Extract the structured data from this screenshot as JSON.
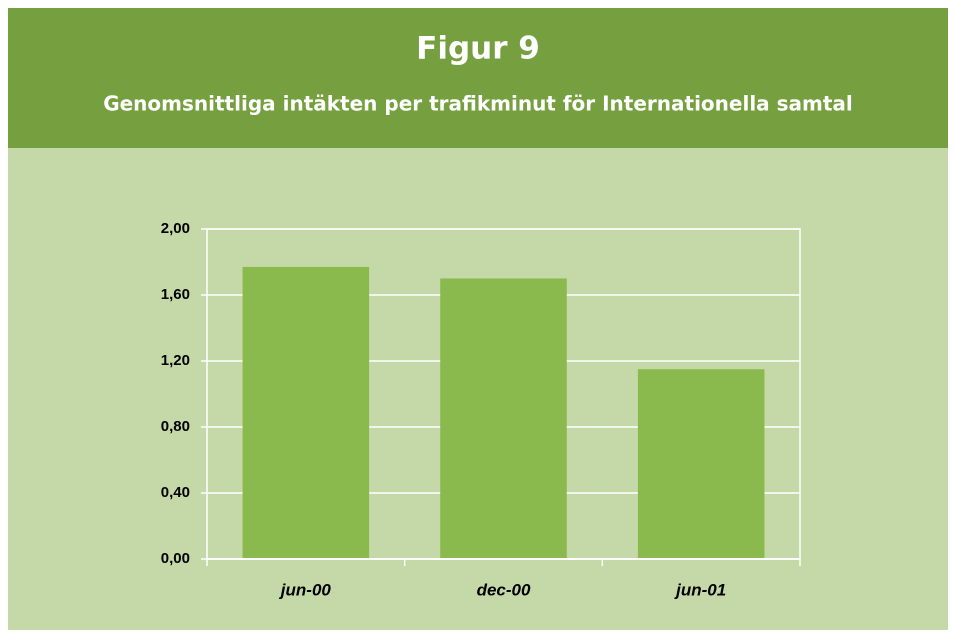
{
  "chart_data": {
    "type": "bar",
    "title": "Figur 9",
    "subtitle": "Genomsnittliga intäkten per trafikminut för Internationella samtal",
    "categories": [
      "jun-00",
      "dec-00",
      "jun-01"
    ],
    "values": [
      1.77,
      1.7,
      1.15
    ],
    "color": "#8ab94d",
    "ylim": [
      0,
      2
    ],
    "yticks": [
      {
        "value": 0,
        "label": "0,00"
      },
      {
        "value": 0.4,
        "label": "0,40"
      },
      {
        "value": 0.8,
        "label": "0,80"
      },
      {
        "value": 1.2,
        "label": "1,20"
      },
      {
        "value": 1.6,
        "label": "1,60"
      },
      {
        "value": 2,
        "label": "2,00"
      }
    ],
    "grid": true
  }
}
